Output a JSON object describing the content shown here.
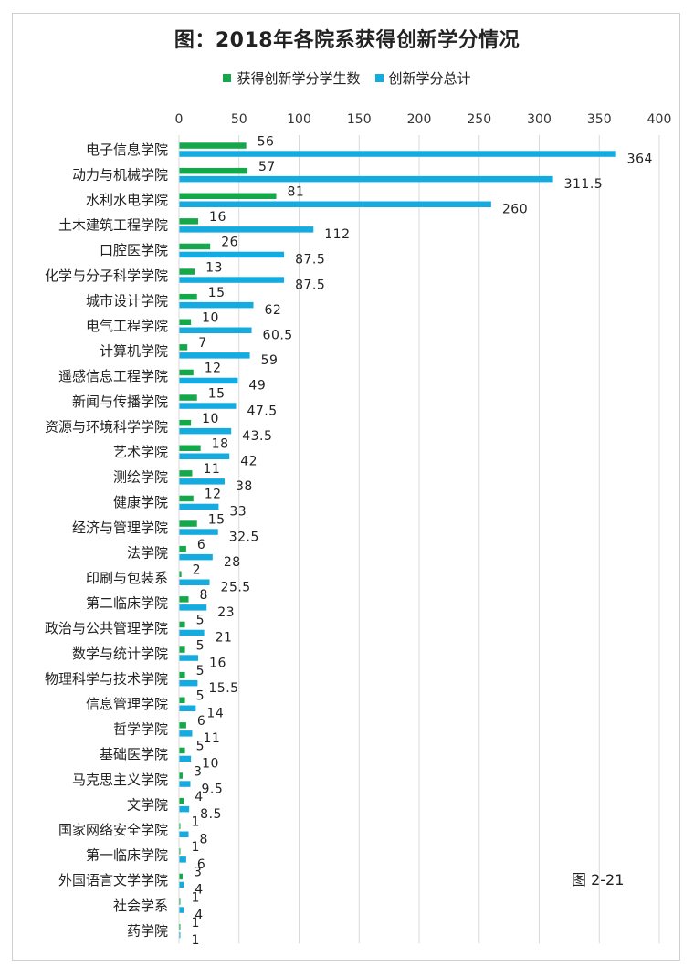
{
  "chart_data": {
    "type": "bar",
    "orientation": "horizontal",
    "title": "图：2018年各院系获得创新学分情况",
    "legend_position": "top",
    "xlim": [
      0,
      400
    ],
    "ticks": [
      0,
      50,
      100,
      150,
      200,
      250,
      300,
      350,
      400
    ],
    "tick_labels": [
      "0",
      "50",
      "100",
      "150",
      "200",
      "250",
      "300",
      "350",
      "400"
    ],
    "grid": true,
    "categories": [
      "电子信息学院",
      "动力与机械学院",
      "水利水电学院",
      "土木建筑工程学院",
      "口腔医学院",
      "化学与分子科学学院",
      "城市设计学院",
      "电气工程学院",
      "计算机学院",
      "遥感信息工程学院",
      "新闻与传播学院",
      "资源与环境科学学院",
      "艺术学院",
      "测绘学院",
      "健康学院",
      "经济与管理学院",
      "法学院",
      "印刷与包装系",
      "第二临床学院",
      "政治与公共管理学院",
      "数学与统计学院",
      "物理科学与技术学院",
      "信息管理学院",
      "哲学学院",
      "基础医学院",
      "马克思主义学院",
      "文学院",
      "国家网络安全学院",
      "第一临床学院",
      "外国语言文学学院",
      "社会学系",
      "药学院"
    ],
    "series": [
      {
        "name": "获得创新学分学生数",
        "color": "#14a84b",
        "values": [
          56,
          57,
          81,
          16,
          26,
          13,
          15,
          10,
          7,
          12,
          15,
          10,
          18,
          11,
          12,
          15,
          6,
          2,
          8,
          5,
          5,
          5,
          5,
          6,
          5,
          3,
          4,
          1,
          1,
          3,
          1,
          1
        ],
        "labels": [
          "56",
          "57",
          "81",
          "16",
          "26",
          "13",
          "15",
          "10",
          "7",
          "12",
          "15",
          "10",
          "18",
          "11",
          "12",
          "15",
          "6",
          "2",
          "8",
          "5",
          "5",
          "5",
          "5",
          "6",
          "5",
          "3",
          "4",
          "1",
          "1",
          "3",
          "1",
          "1"
        ]
      },
      {
        "name": "创新学分总计",
        "color": "#14ace0",
        "values": [
          364,
          311.5,
          260,
          112,
          87.5,
          87.5,
          62,
          60.5,
          59,
          49,
          47.5,
          43.5,
          42,
          38,
          33,
          32.5,
          28,
          25.5,
          23,
          21,
          16,
          15.5,
          14,
          11,
          10,
          9.5,
          8.5,
          8,
          6,
          4,
          4,
          1
        ],
        "labels": [
          "364",
          "311.5",
          "260",
          "112",
          "87.5",
          "87.5",
          "62",
          "60.5",
          "59",
          "49",
          "47.5",
          "43.5",
          "42",
          "38",
          "33",
          "32.5",
          "28",
          "25.5",
          "23",
          "21",
          "16",
          "15.5",
          "14",
          "11",
          "10",
          "9.5",
          "8.5",
          "8",
          "6",
          "4",
          "4",
          "1"
        ]
      }
    ]
  },
  "figure_number": "图 2-21"
}
